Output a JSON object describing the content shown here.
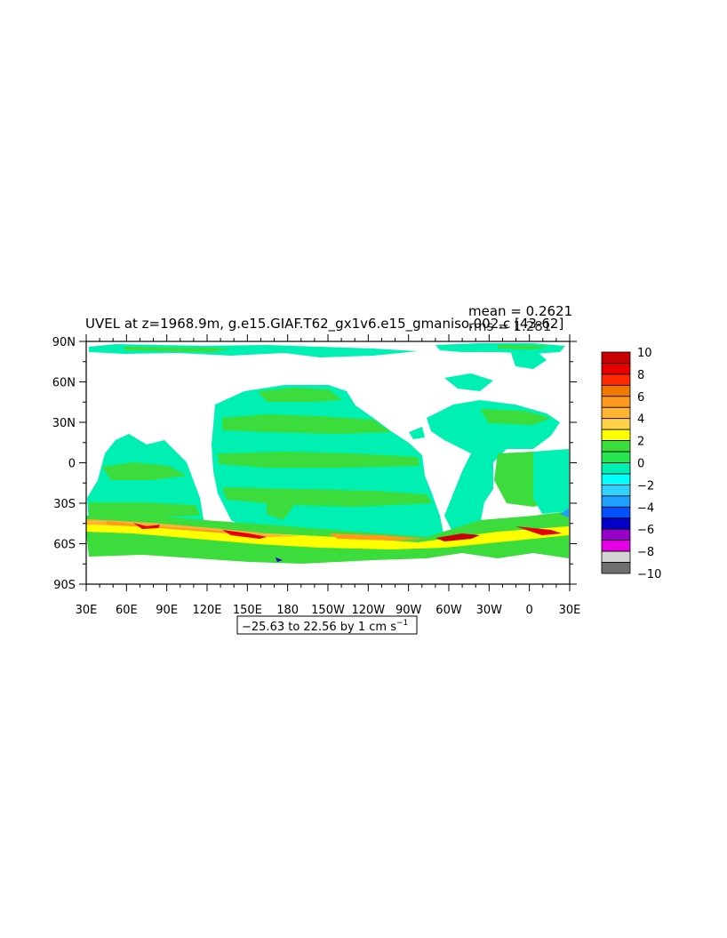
{
  "title": "UVEL at z=1968.9m, g.e15.GIAF.T62_gx1v6.e15_gmaniso.002.c [43-62]",
  "stats": {
    "mean": "mean = 0.2621",
    "rms": "rms = 1.281"
  },
  "info_box": "−25.63 to 22.56 by 1 cm s",
  "info_unit_exponent": "−1",
  "axes": {
    "y_ticks": [
      "90N",
      "60N",
      "30N",
      "0",
      "30S",
      "60S",
      "90S"
    ],
    "x_ticks": [
      "30E",
      "60E",
      "90E",
      "120E",
      "150E",
      "180",
      "150W",
      "120W",
      "90W",
      "60W",
      "30W",
      "0",
      "30E"
    ]
  },
  "colorbar": {
    "labels": [
      "10",
      "8",
      "6",
      "4",
      "2",
      "0",
      "−2",
      "−4",
      "−6",
      "−8",
      "−10"
    ],
    "colors": [
      "#c80000",
      "#e60000",
      "#ff2a00",
      "#f07800",
      "#ff9a1e",
      "#ffb432",
      "#ffd24a",
      "#ffff00",
      "#3cdc3c",
      "#28e650",
      "#00f0b4",
      "#00ffff",
      "#32d2ff",
      "#1ea0ff",
      "#0050ff",
      "#0000c8",
      "#9600c8",
      "#e600e6",
      "#d2d2d2",
      "#6e6e6e"
    ]
  },
  "chart_data": {
    "type": "heatmap",
    "variable": "UVEL",
    "depth": "z=1968.9m",
    "units": "cm s^-1",
    "mean": 0.2621,
    "rms": 1.281,
    "min": -25.63,
    "max": 22.56,
    "contour_interval": 1,
    "x_range": [
      "30E",
      "30E"
    ],
    "y_range": [
      "90S",
      "90N"
    ],
    "colorbar_levels": [
      10,
      8,
      6,
      4,
      2,
      0,
      -2,
      -4,
      -6,
      -8,
      -10
    ]
  }
}
